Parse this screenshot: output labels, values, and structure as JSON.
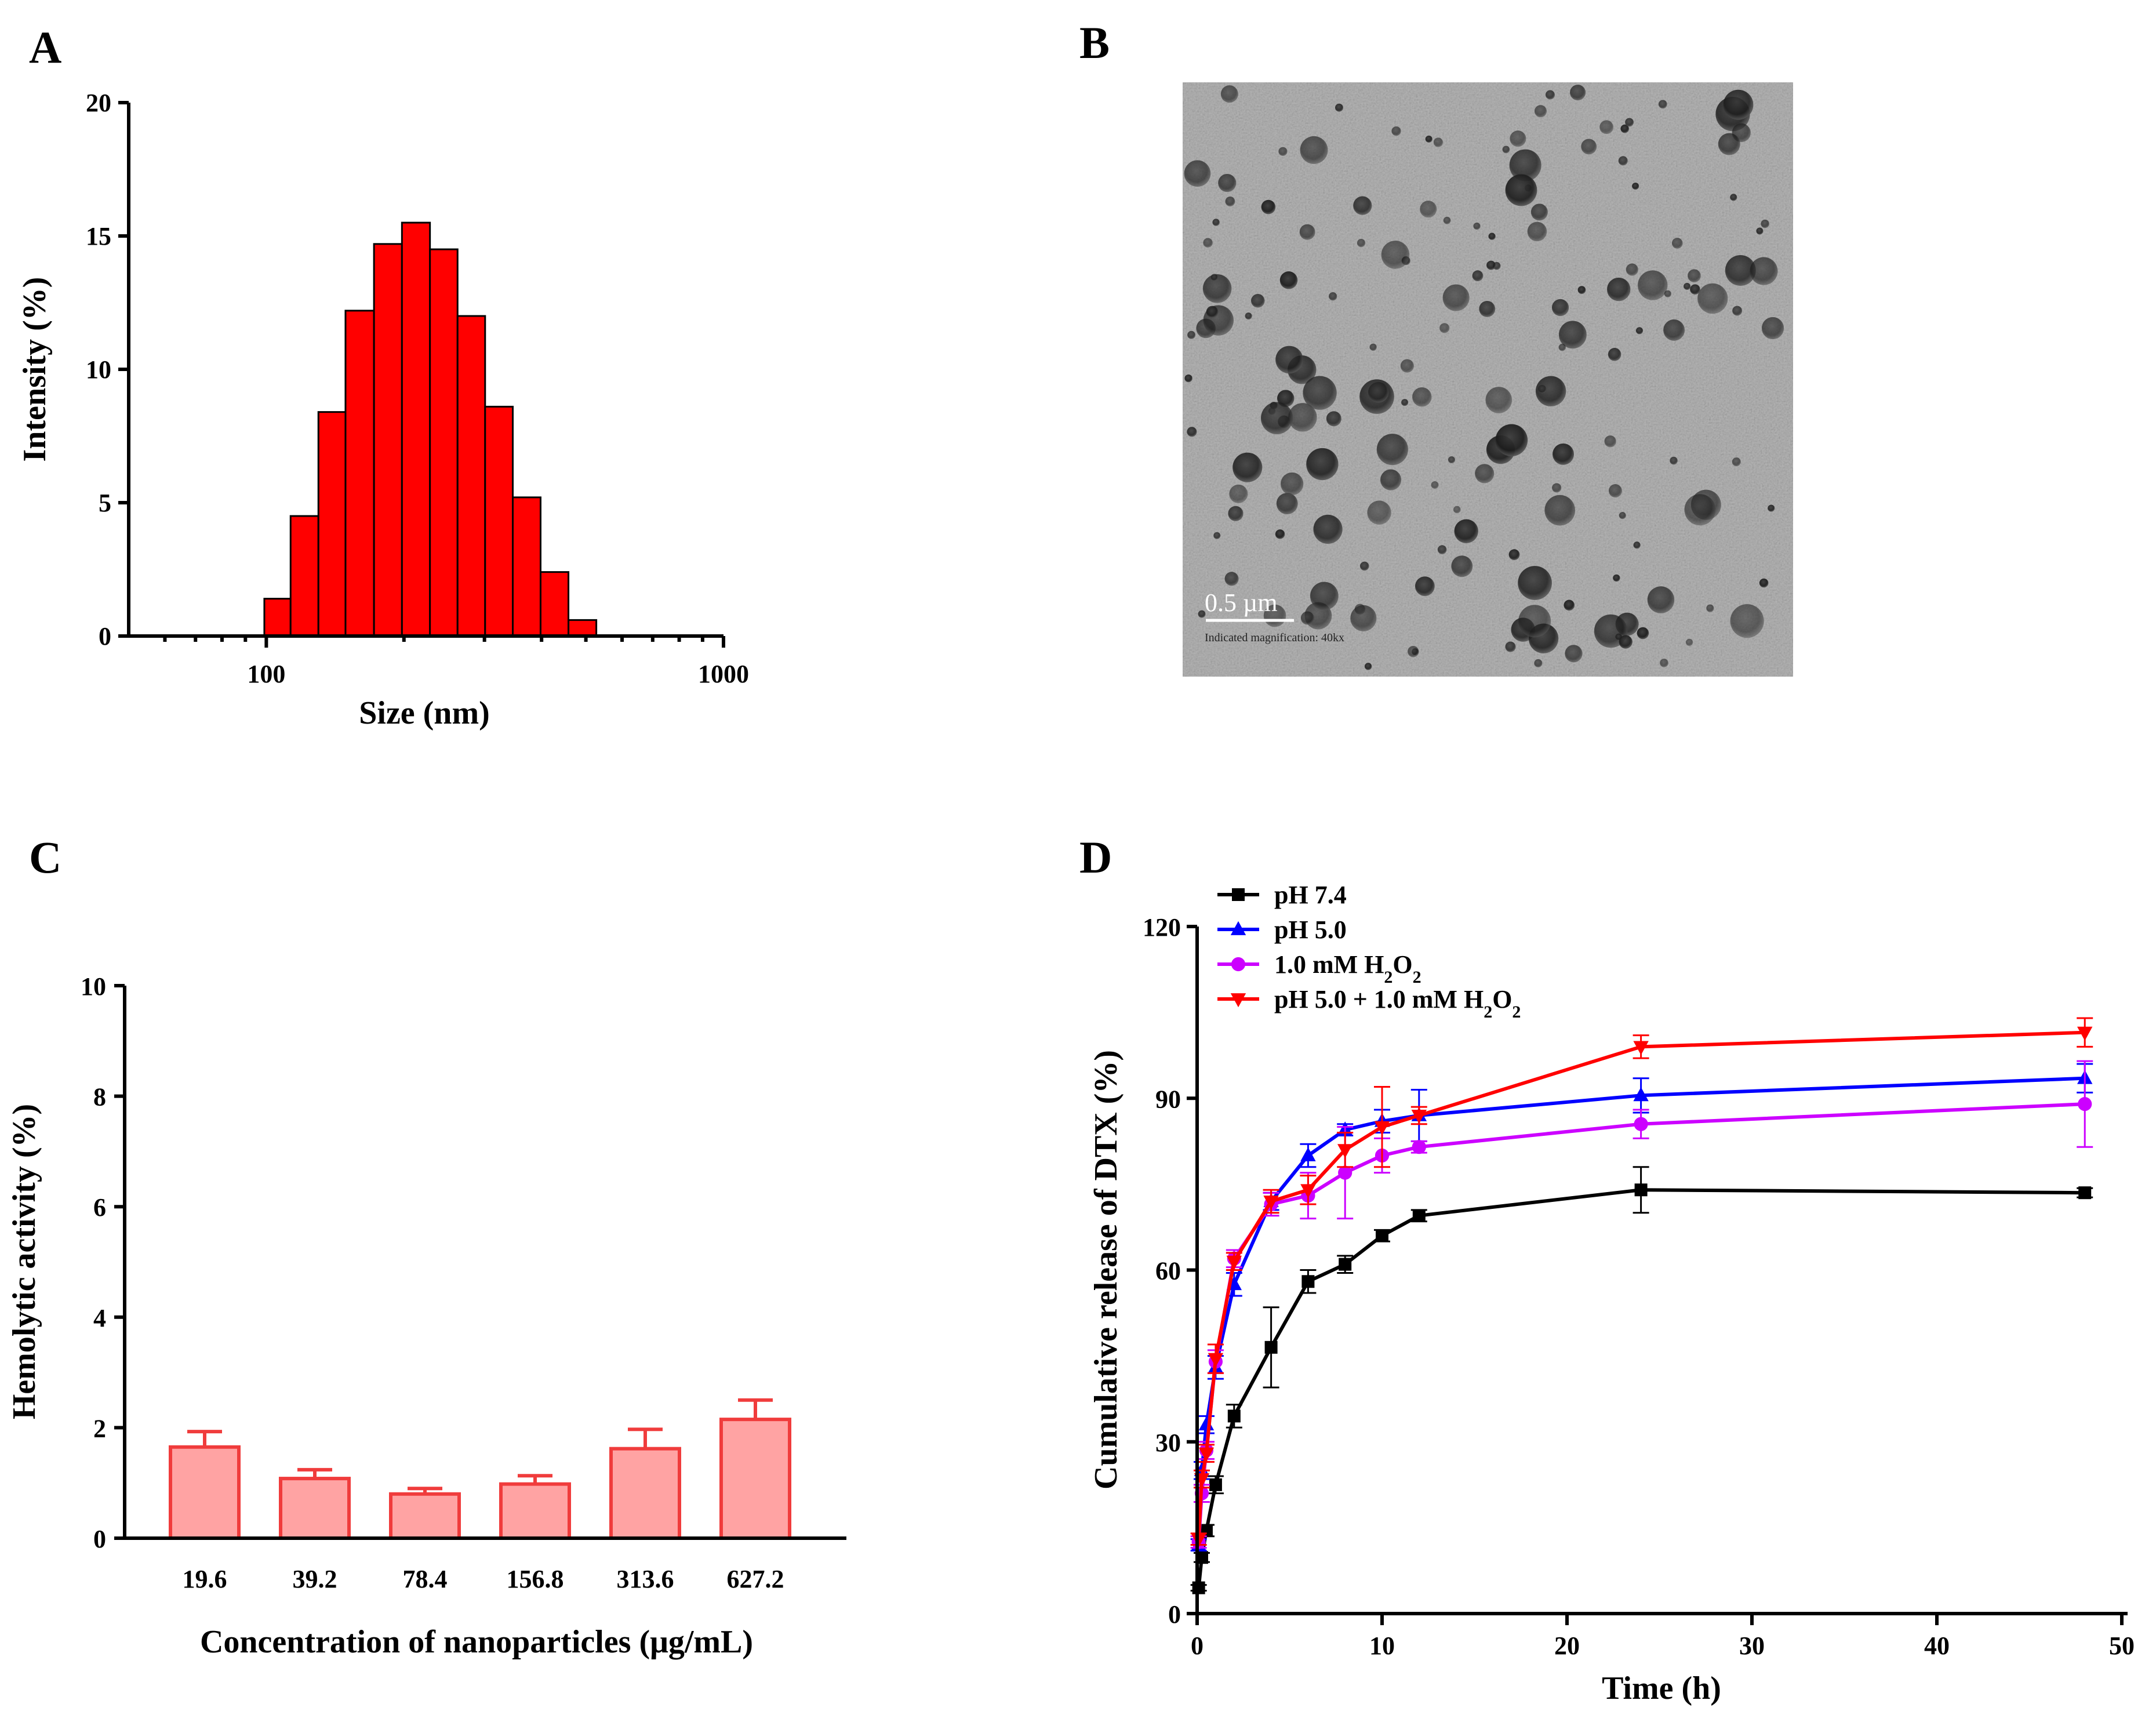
{
  "panels": {
    "a": "A",
    "b": "B",
    "c": "C",
    "d": "D"
  },
  "micrograph": {
    "scale_bar_label": "0.5 µm",
    "magnification_text": "Indicated magnification: 40kx"
  },
  "chart_data": [
    {
      "type": "bar",
      "panel": "A",
      "title": "",
      "xlabel": "Size (nm)",
      "ylabel": "Intensity (%)",
      "xscale": "log",
      "xlim": [
        50,
        1000
      ],
      "ylim": [
        0,
        20
      ],
      "xticks": [
        100,
        1000
      ],
      "yticks": [
        0,
        5,
        10,
        15,
        20
      ],
      "bin_edges": [
        99,
        113,
        130,
        149,
        172,
        198,
        228,
        262,
        301,
        346,
        398,
        458,
        527,
        606
      ],
      "values": [
        1.4,
        4.5,
        8.4,
        12.2,
        14.7,
        15.5,
        14.5,
        12.0,
        8.6,
        5.2,
        2.4,
        0.6,
        0.0
      ],
      "bar_color": "#ff0000",
      "grid": false
    },
    {
      "type": "bar",
      "panel": "C",
      "title": "",
      "xlabel": "Concentration of nanoparticles (μg/mL)",
      "ylabel": "Hemolytic activity (%)",
      "categories": [
        "19.6",
        "39.2",
        "78.4",
        "156.8",
        "313.6",
        "627.2"
      ],
      "values": [
        1.65,
        1.08,
        0.8,
        0.98,
        1.62,
        2.15
      ],
      "errors": [
        0.28,
        0.16,
        0.1,
        0.15,
        0.35,
        0.35
      ],
      "ylim": [
        0,
        10
      ],
      "yticks": [
        0,
        2,
        4,
        6,
        8,
        10
      ],
      "bar_fill": "#ffa3a3",
      "bar_stroke": "#f03c3c",
      "grid": false
    },
    {
      "type": "line",
      "panel": "D",
      "title": "",
      "xlabel": "Time (h)",
      "ylabel": "Cumulative release of DTX (%)",
      "xlim": [
        0,
        50
      ],
      "ylim": [
        0,
        120
      ],
      "xticks": [
        0,
        10,
        20,
        30,
        40,
        50
      ],
      "yticks": [
        0,
        30,
        60,
        90,
        120
      ],
      "legend_position": "top-left",
      "x": [
        0.083,
        0.25,
        0.5,
        1,
        2,
        4,
        6,
        8,
        10,
        12,
        24,
        48
      ],
      "series": [
        {
          "name": "pH 7.4",
          "color": "#000000",
          "marker": "square",
          "values": [
            4.5,
            9.8,
            14.5,
            22.5,
            34.5,
            46.5,
            58,
            61,
            66,
            69.5,
            74,
            73.5
          ],
          "errors": [
            0.5,
            0.8,
            1,
            1.5,
            2,
            7,
            2,
            1.5,
            1,
            1,
            4,
            0.8
          ]
        },
        {
          "name": "pH 5.0",
          "color": "#0000ff",
          "marker": "triangle-up",
          "values": [
            12,
            25,
            33,
            43,
            57.5,
            72,
            80,
            84.5,
            86,
            87,
            90.5,
            93.5
          ],
          "errors": [
            1,
            1.5,
            1.5,
            2,
            2,
            1.5,
            2,
            1,
            2,
            4.5,
            3,
            2.5
          ]
        },
        {
          "name": "1.0 mM H2O2",
          "color": "#cc00ff",
          "marker": "circle",
          "values": [
            12.5,
            21,
            28.5,
            44,
            62,
            71.5,
            73,
            77,
            80,
            81.5,
            85.5,
            89
          ],
          "errors": [
            1,
            1.5,
            1.5,
            2,
            1.5,
            2,
            4,
            8,
            3,
            1,
            2.5,
            7.5
          ]
        },
        {
          "name": "pH 5.0 + 1.0 mM H2O2",
          "color": "#ff0000",
          "marker": "triangle-down",
          "values": [
            13,
            23.5,
            28,
            44.5,
            61.5,
            72,
            74,
            81,
            85,
            87,
            99,
            101.5
          ],
          "errors": [
            1,
            1.5,
            1.5,
            2.5,
            1.5,
            2,
            2.5,
            3,
            7,
            1.5,
            2,
            2.5
          ]
        }
      ]
    }
  ]
}
